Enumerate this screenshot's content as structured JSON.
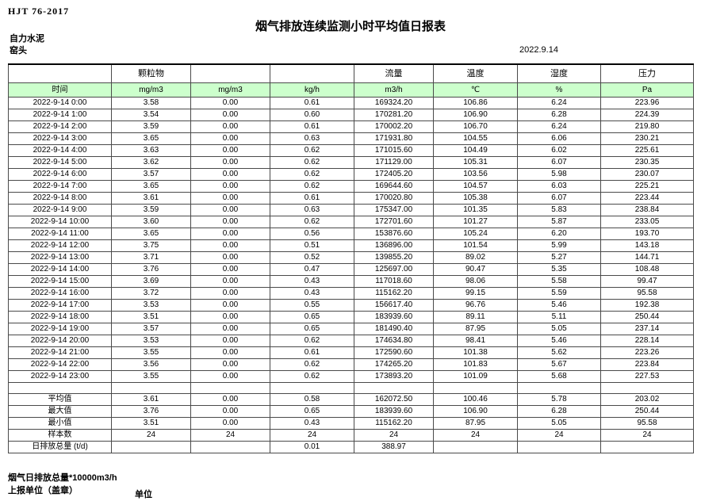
{
  "doc": {
    "standard": "HJT  76-2017",
    "title": "烟气排放连续监测小时平均值日报表",
    "company": "自力水泥",
    "location": "窑头",
    "date": "2022.9.14"
  },
  "table": {
    "group_headers": [
      "",
      "颗粒物",
      "",
      "",
      "流量",
      "温度",
      "湿度",
      "压力"
    ],
    "unit_headers": [
      "时间",
      "mg/m3",
      "mg/m3",
      "kg/h",
      "m3/h",
      "℃",
      "%",
      "Pa"
    ],
    "header_bg": "#ccffcc",
    "rows": [
      [
        "2022-9-14 0:00",
        "3.58",
        "0.00",
        "0.61",
        "169324.20",
        "106.86",
        "6.24",
        "223.96"
      ],
      [
        "2022-9-14 1:00",
        "3.54",
        "0.00",
        "0.60",
        "170281.20",
        "106.90",
        "6.28",
        "224.39"
      ],
      [
        "2022-9-14 2:00",
        "3.59",
        "0.00",
        "0.61",
        "170002.20",
        "106.70",
        "6.24",
        "219.80"
      ],
      [
        "2022-9-14 3:00",
        "3.65",
        "0.00",
        "0.63",
        "171931.80",
        "104.55",
        "6.06",
        "230.21"
      ],
      [
        "2022-9-14 4:00",
        "3.63",
        "0.00",
        "0.62",
        "171015.60",
        "104.49",
        "6.02",
        "225.61"
      ],
      [
        "2022-9-14 5:00",
        "3.62",
        "0.00",
        "0.62",
        "171129.00",
        "105.31",
        "6.07",
        "230.35"
      ],
      [
        "2022-9-14 6:00",
        "3.57",
        "0.00",
        "0.62",
        "172405.20",
        "103.56",
        "5.98",
        "230.07"
      ],
      [
        "2022-9-14 7:00",
        "3.65",
        "0.00",
        "0.62",
        "169644.60",
        "104.57",
        "6.03",
        "225.21"
      ],
      [
        "2022-9-14 8:00",
        "3.61",
        "0.00",
        "0.61",
        "170020.80",
        "105.38",
        "6.07",
        "223.44"
      ],
      [
        "2022-9-14 9:00",
        "3.59",
        "0.00",
        "0.63",
        "175347.00",
        "101.35",
        "5.83",
        "238.84"
      ],
      [
        "2022-9-14 10:00",
        "3.60",
        "0.00",
        "0.62",
        "172701.60",
        "101.27",
        "5.87",
        "233.05"
      ],
      [
        "2022-9-14 11:00",
        "3.65",
        "0.00",
        "0.56",
        "153876.60",
        "105.24",
        "6.20",
        "193.70"
      ],
      [
        "2022-9-14 12:00",
        "3.75",
        "0.00",
        "0.51",
        "136896.00",
        "101.54",
        "5.99",
        "143.18"
      ],
      [
        "2022-9-14 13:00",
        "3.71",
        "0.00",
        "0.52",
        "139855.20",
        "89.02",
        "5.27",
        "144.71"
      ],
      [
        "2022-9-14 14:00",
        "3.76",
        "0.00",
        "0.47",
        "125697.00",
        "90.47",
        "5.35",
        "108.48"
      ],
      [
        "2022-9-14 15:00",
        "3.69",
        "0.00",
        "0.43",
        "117018.60",
        "98.06",
        "5.58",
        "99.47"
      ],
      [
        "2022-9-14 16:00",
        "3.72",
        "0.00",
        "0.43",
        "115162.20",
        "99.15",
        "5.59",
        "95.58"
      ],
      [
        "2022-9-14 17:00",
        "3.53",
        "0.00",
        "0.55",
        "156617.40",
        "96.76",
        "5.46",
        "192.38"
      ],
      [
        "2022-9-14 18:00",
        "3.51",
        "0.00",
        "0.65",
        "183939.60",
        "89.11",
        "5.11",
        "250.44"
      ],
      [
        "2022-9-14 19:00",
        "3.57",
        "0.00",
        "0.65",
        "181490.40",
        "87.95",
        "5.05",
        "237.14"
      ],
      [
        "2022-9-14 20:00",
        "3.53",
        "0.00",
        "0.62",
        "174634.80",
        "98.41",
        "5.46",
        "228.14"
      ],
      [
        "2022-9-14 21:00",
        "3.55",
        "0.00",
        "0.61",
        "172590.60",
        "101.38",
        "5.62",
        "223.26"
      ],
      [
        "2022-9-14 22:00",
        "3.56",
        "0.00",
        "0.62",
        "174265.20",
        "101.83",
        "5.67",
        "223.84"
      ],
      [
        "2022-9-14 23:00",
        "3.55",
        "0.00",
        "0.62",
        "173893.20",
        "101.09",
        "5.68",
        "227.53"
      ]
    ],
    "summary": [
      {
        "label": "平均值",
        "values": [
          "3.61",
          "0.00",
          "0.58",
          "162072.50",
          "100.46",
          "5.78",
          "203.02"
        ]
      },
      {
        "label": "最大值",
        "values": [
          "3.76",
          "0.00",
          "0.65",
          "183939.60",
          "106.90",
          "6.28",
          "250.44"
        ]
      },
      {
        "label": "最小值",
        "values": [
          "3.51",
          "0.00",
          "0.43",
          "115162.20",
          "87.95",
          "5.05",
          "95.58"
        ]
      },
      {
        "label": "样本数",
        "values": [
          "24",
          "24",
          "24",
          "24",
          "24",
          "24",
          "24"
        ]
      },
      {
        "label": "日排放总量 (t/d)",
        "values": [
          "",
          "",
          "0.01",
          "388.97",
          "",
          "",
          ""
        ]
      }
    ]
  },
  "footer": {
    "note": "烟气日排放总量*10000m3/h",
    "report_unit": "上报单位（盖章）",
    "unit_label": "单位"
  }
}
